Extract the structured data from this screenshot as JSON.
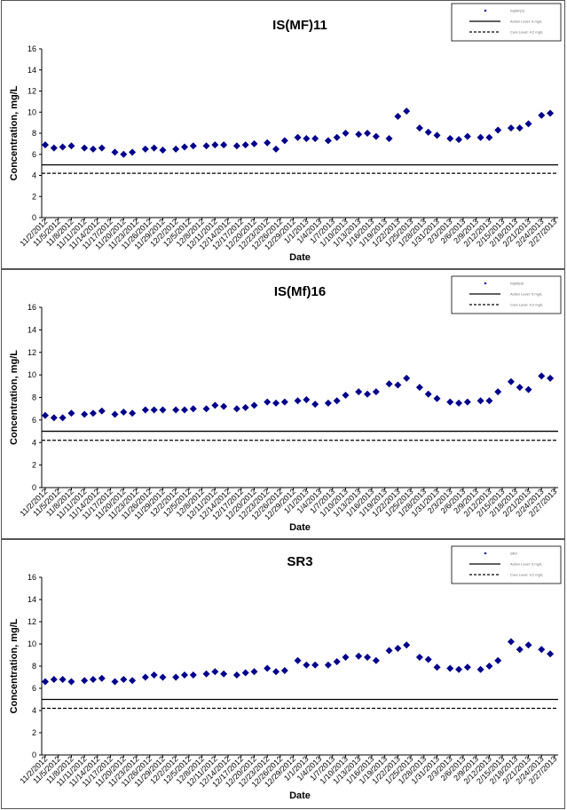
{
  "chart_data": [
    {
      "type": "scatter",
      "title": "IS(MF)11",
      "xlabel": "Date",
      "ylabel": "Concentration, mg/L",
      "ylim": [
        0,
        16
      ],
      "yticks": [
        "0",
        "2",
        "4",
        "6",
        "8",
        "10",
        "12",
        "14",
        "16"
      ],
      "grid": false,
      "legend_position": "top-right",
      "x_tick_labels": [
        "11/2/2012",
        "11/5/2012",
        "11/8/2012",
        "11/11/2012",
        "11/14/2012",
        "11/17/2012",
        "11/20/2012",
        "11/23/2012",
        "11/26/2012",
        "11/29/2012",
        "12/2/2012",
        "12/5/2012",
        "12/8/2012",
        "12/11/2012",
        "12/14/2012",
        "12/17/2012",
        "12/20/2012",
        "12/23/2012",
        "12/26/2012",
        "12/29/2012",
        "1/1/2013",
        "1/4/2013",
        "1/7/2013",
        "1/10/2013",
        "1/13/2013",
        "1/16/2013",
        "1/19/2013",
        "1/22/2013",
        "1/25/2013",
        "1/28/2013",
        "1/31/2013",
        "2/3/2013",
        "2/6/2013",
        "2/9/2013",
        "2/12/2013",
        "2/15/2013",
        "2/18/2013",
        "2/21/2013",
        "2/24/2013",
        "2/27/2013"
      ],
      "x_range": [
        "11/2/2012",
        "2/27/2013"
      ],
      "series": [
        {
          "name": "IS(MF)11",
          "type": "scatter",
          "marker": "diamond",
          "color": "#00008B",
          "x": [
            "11/2/2012",
            "11/4/2012",
            "11/6/2012",
            "11/8/2012",
            "11/11/2012",
            "11/13/2012",
            "11/15/2012",
            "11/18/2012",
            "11/20/2012",
            "11/22/2012",
            "11/25/2012",
            "11/27/2012",
            "11/29/2012",
            "12/2/2012",
            "12/4/2012",
            "12/6/2012",
            "12/9/2012",
            "12/11/2012",
            "12/13/2012",
            "12/16/2012",
            "12/18/2012",
            "12/20/2012",
            "12/23/2012",
            "12/25/2012",
            "12/27/2012",
            "12/30/2012",
            "1/1/2013",
            "1/3/2013",
            "1/6/2013",
            "1/8/2013",
            "1/10/2013",
            "1/13/2013",
            "1/15/2013",
            "1/17/2013",
            "1/20/2013",
            "1/22/2013",
            "1/24/2013",
            "1/27/2013",
            "1/29/2013",
            "1/31/2013",
            "2/3/2013",
            "2/5/2013",
            "2/7/2013",
            "2/10/2013",
            "2/12/2013",
            "2/14/2013",
            "2/17/2013",
            "2/19/2013",
            "2/21/2013",
            "2/24/2013",
            "2/26/2013"
          ],
          "y": [
            6.9,
            6.6,
            6.7,
            6.8,
            6.6,
            6.5,
            6.6,
            6.2,
            6.0,
            6.2,
            6.5,
            6.6,
            6.4,
            6.5,
            6.7,
            6.8,
            6.8,
            6.9,
            6.9,
            6.8,
            6.9,
            7.0,
            7.1,
            6.5,
            7.3,
            7.6,
            7.5,
            7.5,
            7.3,
            7.6,
            8.0,
            7.9,
            8.0,
            7.7,
            7.5,
            9.6,
            10.1,
            8.5,
            8.1,
            7.8,
            7.5,
            7.4,
            7.7,
            7.6,
            7.6,
            8.3,
            8.5,
            8.5,
            8.9,
            9.7,
            9.9
          ]
        },
        {
          "name": "Action Level: 5 mg/L",
          "type": "hline",
          "value": 5.0,
          "style": "solid",
          "color": "#000000"
        },
        {
          "name": "Cure Level: 4.2 mg/L",
          "type": "hline",
          "value": 4.2,
          "style": "dashed",
          "color": "#000000"
        }
      ]
    },
    {
      "type": "scatter",
      "title": "IS(Mf)16",
      "xlabel": "Date",
      "ylabel": "Concentration, mg/L",
      "ylim": [
        0,
        16
      ],
      "yticks": [
        "0",
        "2",
        "4",
        "6",
        "8",
        "10",
        "12",
        "14",
        "16"
      ],
      "grid": false,
      "legend_position": "top-right",
      "x_tick_labels": [
        "11/2/2012",
        "11/5/2012",
        "11/8/2012",
        "11/11/2012",
        "11/14/2012",
        "11/17/2012",
        "11/20/2012",
        "11/23/2012",
        "11/26/2012",
        "11/29/2012",
        "12/2/2012",
        "12/5/2012",
        "12/8/2012",
        "12/11/2012",
        "12/14/2012",
        "12/17/2012",
        "12/20/2012",
        "12/23/2012",
        "12/26/2012",
        "12/29/2012",
        "1/1/2013",
        "1/4/2013",
        "1/7/2013",
        "1/10/2013",
        "1/13/2013",
        "1/16/2013",
        "1/19/2013",
        "1/22/2013",
        "1/25/2013",
        "1/28/2013",
        "1/31/2013",
        "2/3/2013",
        "2/6/2013",
        "2/9/2013",
        "2/12/2013",
        "2/15/2013",
        "2/18/2013",
        "2/21/2013",
        "2/24/2013",
        "2/27/2013"
      ],
      "x_range": [
        "11/2/2012",
        "2/27/2013"
      ],
      "series": [
        {
          "name": "IS(Mf)16",
          "type": "scatter",
          "marker": "diamond",
          "color": "#00008B",
          "x": [
            "11/2/2012",
            "11/4/2012",
            "11/6/2012",
            "11/8/2012",
            "11/11/2012",
            "11/13/2012",
            "11/15/2012",
            "11/18/2012",
            "11/20/2012",
            "11/22/2012",
            "11/25/2012",
            "11/27/2012",
            "11/29/2012",
            "12/2/2012",
            "12/4/2012",
            "12/6/2012",
            "12/9/2012",
            "12/11/2012",
            "12/13/2012",
            "12/16/2012",
            "12/18/2012",
            "12/20/2012",
            "12/23/2012",
            "12/25/2012",
            "12/27/2012",
            "12/30/2012",
            "1/1/2013",
            "1/3/2013",
            "1/6/2013",
            "1/8/2013",
            "1/10/2013",
            "1/13/2013",
            "1/15/2013",
            "1/17/2013",
            "1/20/2013",
            "1/22/2013",
            "1/24/2013",
            "1/27/2013",
            "1/29/2013",
            "1/31/2013",
            "2/3/2013",
            "2/5/2013",
            "2/7/2013",
            "2/10/2013",
            "2/12/2013",
            "2/14/2013",
            "2/17/2013",
            "2/19/2013",
            "2/21/2013",
            "2/24/2013",
            "2/26/2013"
          ],
          "y": [
            6.4,
            6.2,
            6.2,
            6.6,
            6.5,
            6.6,
            6.8,
            6.5,
            6.7,
            6.6,
            6.9,
            6.9,
            6.9,
            6.9,
            6.9,
            7.0,
            7.0,
            7.3,
            7.2,
            7.0,
            7.1,
            7.3,
            7.6,
            7.5,
            7.6,
            7.7,
            7.8,
            7.4,
            7.5,
            7.7,
            8.2,
            8.5,
            8.3,
            8.5,
            9.2,
            9.1,
            9.7,
            8.9,
            8.3,
            7.9,
            7.6,
            7.5,
            7.6,
            7.7,
            7.7,
            8.5,
            9.4,
            8.9,
            8.7,
            9.9,
            9.7
          ]
        },
        {
          "name": "Action Level: 5 mg/L",
          "type": "hline",
          "value": 5.0,
          "style": "solid",
          "color": "#000000"
        },
        {
          "name": "Cure Level: 4.2 mg/L",
          "type": "hline",
          "value": 4.2,
          "style": "dashed",
          "color": "#000000"
        }
      ]
    },
    {
      "type": "scatter",
      "title": "SR3",
      "xlabel": "Date",
      "ylabel": "Concentration, mg/L",
      "ylim": [
        0,
        16
      ],
      "yticks": [
        "0",
        "2",
        "4",
        "6",
        "8",
        "10",
        "12",
        "14",
        "16"
      ],
      "grid": false,
      "legend_position": "top-right",
      "x_tick_labels": [
        "11/2/2012",
        "11/5/2012",
        "11/8/2012",
        "11/11/2012",
        "11/14/2012",
        "11/17/2012",
        "11/20/2012",
        "11/23/2012",
        "11/26/2012",
        "11/29/2012",
        "12/2/2012",
        "12/5/2012",
        "12/8/2012",
        "12/11/2012",
        "12/14/2012",
        "12/17/2012",
        "12/20/2012",
        "12/23/2012",
        "12/26/2012",
        "12/29/2012",
        "1/1/2013",
        "1/4/2013",
        "1/7/2013",
        "1/10/2013",
        "1/13/2013",
        "1/16/2013",
        "1/19/2013",
        "1/22/2013",
        "1/25/2013",
        "1/28/2013",
        "1/31/2013",
        "2/3/2013",
        "2/6/2013",
        "2/9/2013",
        "2/12/2013",
        "2/15/2013",
        "2/18/2013",
        "2/21/2013",
        "2/24/2013",
        "2/27/2013"
      ],
      "x_range": [
        "11/2/2012",
        "2/27/2013"
      ],
      "series": [
        {
          "name": "SR3",
          "type": "scatter",
          "marker": "diamond",
          "color": "#00008B",
          "x": [
            "11/2/2012",
            "11/4/2012",
            "11/6/2012",
            "11/8/2012",
            "11/11/2012",
            "11/13/2012",
            "11/15/2012",
            "11/18/2012",
            "11/20/2012",
            "11/22/2012",
            "11/25/2012",
            "11/27/2012",
            "11/29/2012",
            "12/2/2012",
            "12/4/2012",
            "12/6/2012",
            "12/9/2012",
            "12/11/2012",
            "12/13/2012",
            "12/16/2012",
            "12/18/2012",
            "12/20/2012",
            "12/23/2012",
            "12/25/2012",
            "12/27/2012",
            "12/30/2012",
            "1/1/2013",
            "1/3/2013",
            "1/6/2013",
            "1/8/2013",
            "1/10/2013",
            "1/13/2013",
            "1/15/2013",
            "1/17/2013",
            "1/20/2013",
            "1/22/2013",
            "1/24/2013",
            "1/27/2013",
            "1/29/2013",
            "1/31/2013",
            "2/3/2013",
            "2/5/2013",
            "2/7/2013",
            "2/10/2013",
            "2/12/2013",
            "2/14/2013",
            "2/17/2013",
            "2/19/2013",
            "2/21/2013",
            "2/24/2013",
            "2/26/2013"
          ],
          "y": [
            6.6,
            6.8,
            6.8,
            6.6,
            6.7,
            6.8,
            6.9,
            6.6,
            6.8,
            6.7,
            7.0,
            7.2,
            7.0,
            7.0,
            7.2,
            7.2,
            7.3,
            7.5,
            7.3,
            7.2,
            7.4,
            7.5,
            7.8,
            7.5,
            7.6,
            8.5,
            8.1,
            8.1,
            8.1,
            8.4,
            8.8,
            8.9,
            8.8,
            8.5,
            9.4,
            9.6,
            9.9,
            8.8,
            8.6,
            7.9,
            7.8,
            7.7,
            7.9,
            7.7,
            8.0,
            8.5,
            10.2,
            9.5,
            9.9,
            9.5,
            9.1
          ]
        },
        {
          "name": "Action Level: 5 mg/L",
          "type": "hline",
          "value": 5.0,
          "style": "solid",
          "color": "#000000"
        },
        {
          "name": "Cure Level: 4.2 mg/L",
          "type": "hline",
          "value": 4.2,
          "style": "dashed",
          "color": "#000000"
        }
      ]
    }
  ]
}
